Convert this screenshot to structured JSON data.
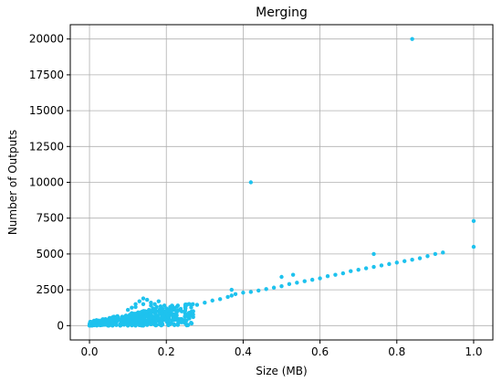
{
  "chart_data": {
    "type": "scatter",
    "title": "Merging",
    "xlabel": "Size (MB)",
    "ylabel": "Number of Outputs",
    "xlim": [
      -0.05,
      1.05
    ],
    "ylim": [
      -1000,
      21000
    ],
    "xticks": [
      {
        "value": 0.0,
        "label": "0.0"
      },
      {
        "value": 0.2,
        "label": "0.2"
      },
      {
        "value": 0.4,
        "label": "0.4"
      },
      {
        "value": 0.6,
        "label": "0.6"
      },
      {
        "value": 0.8,
        "label": "0.8"
      },
      {
        "value": 1.0,
        "label": "1.0"
      }
    ],
    "yticks": [
      {
        "value": 0,
        "label": "0"
      },
      {
        "value": 2500,
        "label": "2500"
      },
      {
        "value": 5000,
        "label": "5000"
      },
      {
        "value": 7500,
        "label": "7500"
      },
      {
        "value": 10000,
        "label": "10000"
      },
      {
        "value": 12500,
        "label": "12500"
      },
      {
        "value": 15000,
        "label": "15000"
      },
      {
        "value": 17500,
        "label": "17500"
      },
      {
        "value": 20000,
        "label": "20000"
      }
    ],
    "grid": true,
    "color": "#1ec2ee",
    "points": [
      [
        0.0,
        0
      ],
      [
        0.005,
        40
      ],
      [
        0.01,
        100
      ],
      [
        0.015,
        180
      ],
      [
        0.02,
        60
      ],
      [
        0.025,
        250
      ],
      [
        0.03,
        120
      ],
      [
        0.035,
        300
      ],
      [
        0.04,
        200
      ],
      [
        0.045,
        380
      ],
      [
        0.05,
        150
      ],
      [
        0.055,
        420
      ],
      [
        0.06,
        300
      ],
      [
        0.065,
        500
      ],
      [
        0.07,
        250
      ],
      [
        0.075,
        560
      ],
      [
        0.08,
        400
      ],
      [
        0.085,
        620
      ],
      [
        0.09,
        350
      ],
      [
        0.095,
        700
      ],
      [
        0.1,
        500
      ],
      [
        0.105,
        760
      ],
      [
        0.11,
        450
      ],
      [
        0.115,
        820
      ],
      [
        0.12,
        600
      ],
      [
        0.125,
        880
      ],
      [
        0.13,
        550
      ],
      [
        0.135,
        950
      ],
      [
        0.14,
        700
      ],
      [
        0.145,
        1000
      ],
      [
        0.15,
        650
      ],
      [
        0.155,
        1100
      ],
      [
        0.16,
        800
      ],
      [
        0.165,
        1200
      ],
      [
        0.17,
        900
      ],
      [
        0.175,
        1300
      ],
      [
        0.18,
        1000
      ],
      [
        0.185,
        1350
      ],
      [
        0.19,
        950
      ],
      [
        0.195,
        1400
      ],
      [
        0.2,
        1200
      ],
      [
        0.21,
        1300
      ],
      [
        0.22,
        1100
      ],
      [
        0.23,
        1400
      ],
      [
        0.24,
        1000
      ],
      [
        0.25,
        1200
      ],
      [
        0.26,
        900
      ],
      [
        0.27,
        1000
      ],
      [
        0.02,
        20
      ],
      [
        0.04,
        60
      ],
      [
        0.06,
        80
      ],
      [
        0.08,
        120
      ],
      [
        0.1,
        150
      ],
      [
        0.12,
        180
      ],
      [
        0.14,
        200
      ],
      [
        0.16,
        250
      ],
      [
        0.18,
        300
      ],
      [
        0.2,
        350
      ],
      [
        0.22,
        400
      ],
      [
        0.24,
        450
      ],
      [
        0.26,
        500
      ],
      [
        0.27,
        600
      ],
      [
        0.03,
        30
      ],
      [
        0.05,
        10
      ],
      [
        0.07,
        40
      ],
      [
        0.09,
        60
      ],
      [
        0.11,
        20
      ],
      [
        0.13,
        30
      ],
      [
        0.15,
        50
      ],
      [
        0.17,
        60
      ],
      [
        0.19,
        80
      ],
      [
        0.21,
        100
      ],
      [
        0.23,
        120
      ],
      [
        0.25,
        150
      ],
      [
        0.1,
        1100
      ],
      [
        0.11,
        1250
      ],
      [
        0.12,
        1500
      ],
      [
        0.13,
        1700
      ],
      [
        0.14,
        1900
      ],
      [
        0.15,
        1800
      ],
      [
        0.16,
        1600
      ],
      [
        0.17,
        1500
      ],
      [
        0.18,
        1700
      ],
      [
        0.12,
        1300
      ],
      [
        0.14,
        1500
      ],
      [
        0.16,
        1400
      ],
      [
        0.05,
        0
      ],
      [
        0.06,
        0
      ],
      [
        0.08,
        0
      ],
      [
        0.1,
        0
      ],
      [
        0.12,
        0
      ],
      [
        0.14,
        0
      ],
      [
        0.22,
        100
      ],
      [
        0.23,
        50
      ],
      [
        0.28,
        1450
      ],
      [
        0.3,
        1600
      ],
      [
        0.32,
        1750
      ],
      [
        0.34,
        1850
      ],
      [
        0.36,
        2000
      ],
      [
        0.37,
        2100
      ],
      [
        0.38,
        2200
      ],
      [
        0.4,
        2300
      ],
      [
        0.42,
        2350
      ],
      [
        0.44,
        2450
      ],
      [
        0.46,
        2550
      ],
      [
        0.48,
        2650
      ],
      [
        0.5,
        2750
      ],
      [
        0.52,
        2900
      ],
      [
        0.54,
        3000
      ],
      [
        0.56,
        3100
      ],
      [
        0.58,
        3200
      ],
      [
        0.6,
        3300
      ],
      [
        0.62,
        3450
      ],
      [
        0.64,
        3550
      ],
      [
        0.66,
        3650
      ],
      [
        0.68,
        3800
      ],
      [
        0.7,
        3900
      ],
      [
        0.72,
        4000
      ],
      [
        0.74,
        4100
      ],
      [
        0.76,
        4200
      ],
      [
        0.78,
        4300
      ],
      [
        0.8,
        4400
      ],
      [
        0.82,
        4500
      ],
      [
        0.84,
        4600
      ],
      [
        0.86,
        4700
      ],
      [
        0.88,
        4850
      ],
      [
        0.9,
        5000
      ],
      [
        0.92,
        5100
      ],
      [
        0.37,
        2500
      ],
      [
        0.5,
        3400
      ],
      [
        0.53,
        3550
      ],
      [
        0.74,
        5000
      ],
      [
        0.42,
        10000
      ],
      [
        0.84,
        20000
      ],
      [
        1.0,
        7300
      ],
      [
        1.0,
        5500
      ]
    ]
  }
}
